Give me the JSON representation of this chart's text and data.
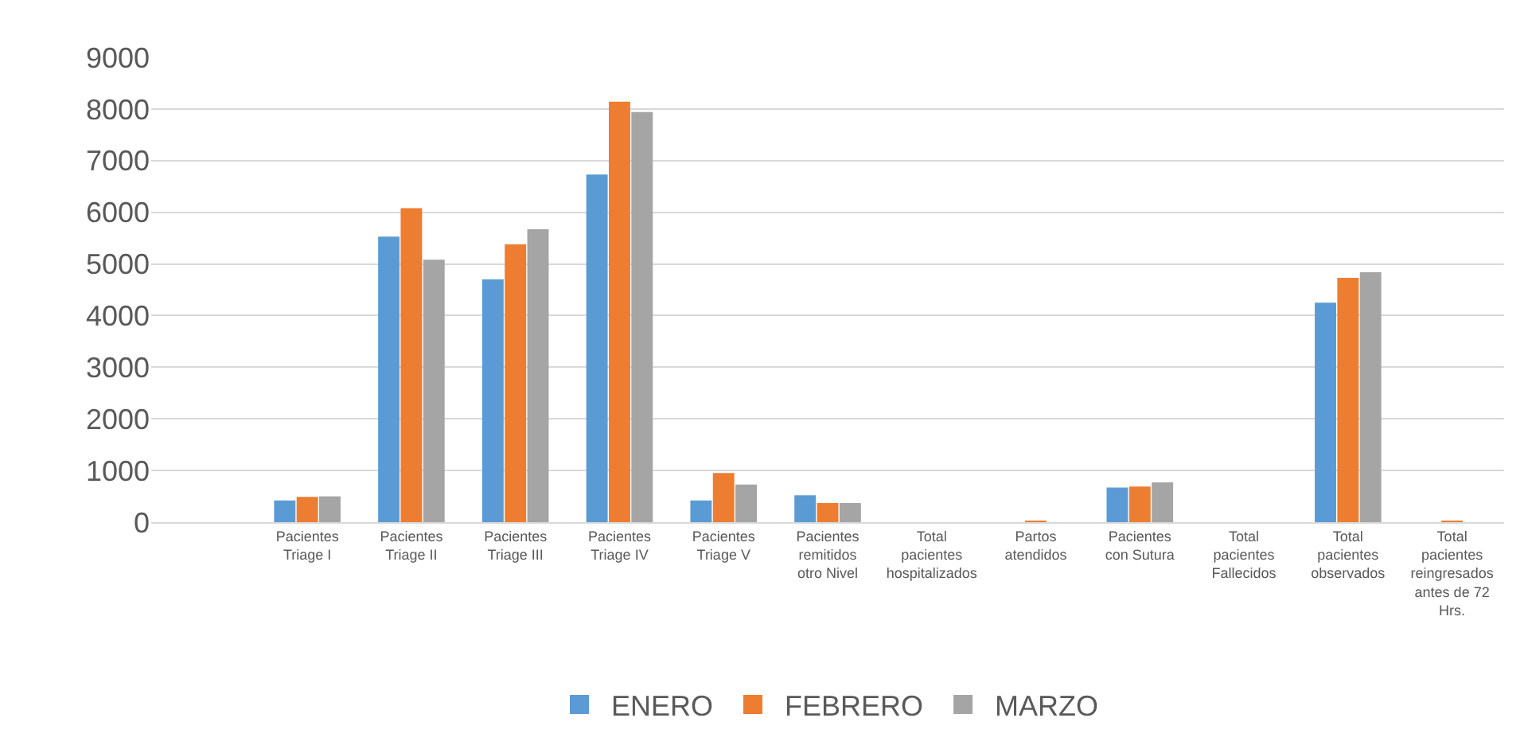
{
  "chart_data": {
    "type": "bar",
    "categories": [
      null,
      "Pacientes Triage I",
      "Pacientes Triage II",
      "Pacientes Triage III",
      "Pacientes Triage IV",
      "Pacientes Triage V",
      "Pacientes remitidos otro Nivel",
      "Total pacientes hospitalizados",
      "Partos atendidos",
      "Pacientes con Sutura",
      "Total pacientes Fallecidos",
      "Total pacientes observados",
      "Total pacientes reingresados antes de 72 Hrs."
    ],
    "series": [
      {
        "name": "ENERO",
        "color": "#5b9bd5",
        "values": [
          null,
          420,
          5530,
          4700,
          6730,
          420,
          520,
          0,
          0,
          670,
          0,
          4250,
          0
        ]
      },
      {
        "name": "FEBRERO",
        "color": "#ed7d31",
        "values": [
          null,
          490,
          6080,
          5380,
          8140,
          950,
          370,
          0,
          10,
          690,
          0,
          4730,
          20
        ]
      },
      {
        "name": "MARZO",
        "color": "#a5a5a5",
        "values": [
          null,
          500,
          5080,
          5670,
          7940,
          730,
          370,
          0,
          0,
          770,
          0,
          4840,
          0
        ]
      }
    ],
    "ylim": [
      0,
      9000
    ],
    "yticks": [
      0,
      1000,
      2000,
      3000,
      4000,
      5000,
      6000,
      7000,
      8000,
      9000
    ],
    "grid": "y",
    "legend": "bottom"
  }
}
